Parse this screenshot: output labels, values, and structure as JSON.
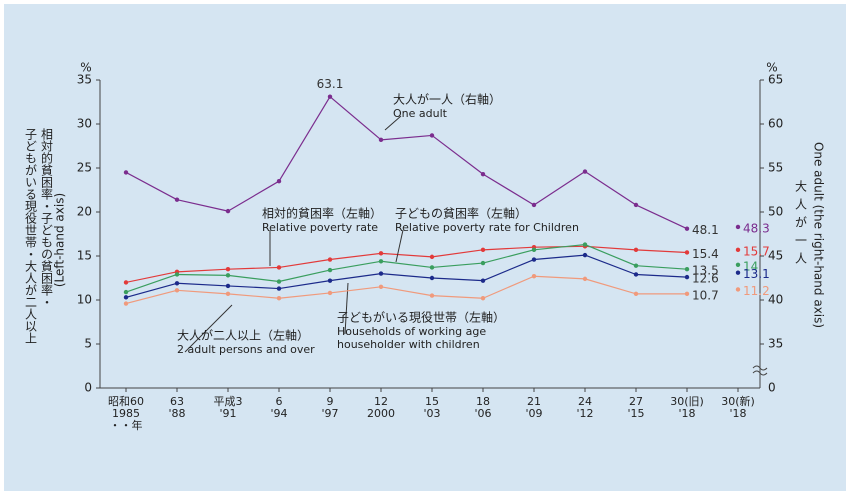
{
  "chart_data": {
    "type": "line",
    "left_unit": "%",
    "right_unit": "%",
    "left_axis_label": [
      "相対的貧困率・子どもの貧困率・",
      "子どもがいる現役世帯・大人が二人以上",
      "(Left-hand axis)"
    ],
    "right_axis_label": [
      "大人が一人",
      "One adult (the right-hand axis)"
    ],
    "categories": [
      "昭和60",
      "63",
      "平成3",
      "6",
      "9",
      "12",
      "15",
      "18",
      "21",
      "24",
      "27",
      "30(旧)",
      "30(新)"
    ],
    "categories_sub": [
      "1985",
      "'88",
      "'91",
      "'94",
      "'97",
      "2000",
      "'03",
      "'06",
      "'09",
      "'12",
      "'15",
      "'18",
      "'18"
    ],
    "year_note": "・・年",
    "ylim": [
      0,
      35
    ],
    "yticks": [
      0,
      5,
      10,
      15,
      20,
      25,
      30,
      35
    ],
    "y2lim": [
      30,
      65
    ],
    "y2ticks": [
      35,
      40,
      45,
      50,
      55,
      60,
      65
    ],
    "y2_break_tick": 0,
    "connected_count": 12,
    "series": [
      {
        "name": "大人が一人（右軸）",
        "name_en": "One adult",
        "color": "#7b2d8e",
        "axis": "y2",
        "values": [
          54.5,
          51.4,
          50.1,
          53.5,
          63.1,
          58.2,
          58.7,
          54.3,
          50.8,
          54.6,
          50.8,
          48.1,
          48.3
        ],
        "label_indices": [
          4,
          11,
          12
        ]
      },
      {
        "name": "相対的貧困率（左軸）",
        "name_en": "Relative poverty rate",
        "color": "#e23a3a",
        "values": [
          12.0,
          13.2,
          13.5,
          13.7,
          14.6,
          15.3,
          14.9,
          15.7,
          16.0,
          16.1,
          15.7,
          15.4,
          15.7
        ],
        "label_indices": [
          11,
          12
        ]
      },
      {
        "name": "子どもの貧困率（左軸）",
        "name_en": "Relative poverty rate for Children",
        "color": "#3a9e5e",
        "values": [
          10.9,
          12.9,
          12.8,
          12.1,
          13.4,
          14.4,
          13.7,
          14.2,
          15.7,
          16.3,
          13.9,
          13.5,
          14.0
        ],
        "label_indices": [
          11,
          12
        ]
      },
      {
        "name": "子どもがいる現役世帯（左軸）",
        "name_en": "Households of working age householder with children",
        "color": "#1c2a8a",
        "values": [
          10.3,
          11.9,
          11.6,
          11.3,
          12.2,
          13.0,
          12.5,
          12.2,
          14.6,
          15.1,
          12.9,
          12.6,
          13.1
        ],
        "label_indices": [
          11,
          12
        ]
      },
      {
        "name": "大人が二人以上（左軸）",
        "name_en": "2 adult persons and over",
        "color": "#f09a7c",
        "values": [
          9.6,
          11.1,
          10.7,
          10.2,
          10.8,
          11.5,
          10.5,
          10.2,
          12.7,
          12.4,
          10.7,
          10.7,
          11.2
        ],
        "label_indices": [
          11,
          12
        ]
      }
    ]
  }
}
